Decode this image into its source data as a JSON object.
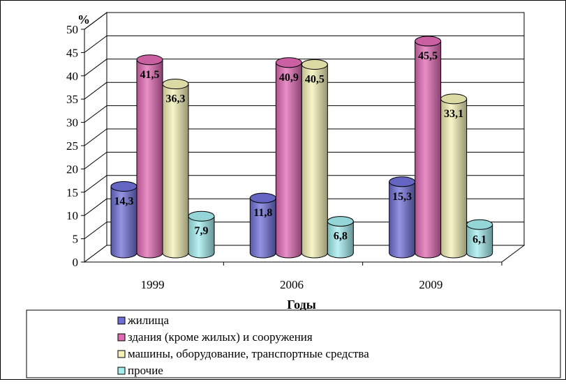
{
  "chart_data": {
    "type": "bar",
    "categories": [
      "1999",
      "2006",
      "2009"
    ],
    "series": [
      {
        "name": "жилища",
        "values": [
          14.3,
          11.8,
          15.3
        ],
        "labels": [
          "14,3",
          "11,8",
          "15,3"
        ],
        "color": "#6f6fd8"
      },
      {
        "name": "здания (кроме жилых) и сооружения",
        "values": [
          41.5,
          40.9,
          45.5
        ],
        "labels": [
          "41,5",
          "40,9",
          "45,5"
        ],
        "color": "#e06ab4"
      },
      {
        "name": "машины, оборудование, транспортные средства",
        "values": [
          36.3,
          40.5,
          33.1
        ],
        "labels": [
          "36,3",
          "40,5",
          "33,1"
        ],
        "color": "#f4f2b6"
      },
      {
        "name": "прочие",
        "values": [
          7.9,
          6.8,
          6.1
        ],
        "labels": [
          "7,9",
          "6,8",
          "6,1"
        ],
        "color": "#a4eef0"
      }
    ],
    "ylim": [
      0,
      50
    ],
    "yticks": [
      "0",
      "5",
      "10",
      "15",
      "20",
      "25",
      "30",
      "35",
      "40",
      "45",
      "50"
    ],
    "ylabel": "%",
    "xlabel": "Годы",
    "grid": true,
    "legend": "bottom"
  }
}
